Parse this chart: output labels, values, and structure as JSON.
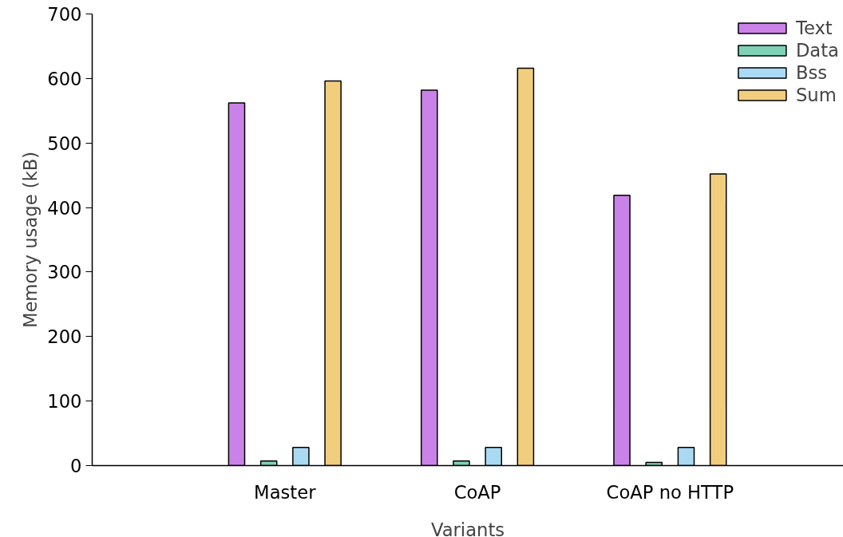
{
  "chart_data": {
    "type": "bar",
    "xlabel": "Variants",
    "ylabel": "Memory usage (kB)",
    "categories": [
      "Master",
      "CoAP",
      "CoAP no HTTP"
    ],
    "series": [
      {
        "name": "Text",
        "color": "#c982e8",
        "values": [
          562,
          582,
          419
        ]
      },
      {
        "name": "Data",
        "color": "#7fd1b5",
        "values": [
          7,
          7,
          5
        ]
      },
      {
        "name": "Bss",
        "color": "#aad9f3",
        "values": [
          28,
          28,
          28
        ]
      },
      {
        "name": "Sum",
        "color": "#f1cd7e",
        "values": [
          596,
          616,
          452
        ]
      }
    ],
    "ylim": [
      0,
      700
    ],
    "yticks": [
      0,
      100,
      200,
      300,
      400,
      500,
      600,
      700
    ],
    "grid": false,
    "legend": "top right"
  }
}
